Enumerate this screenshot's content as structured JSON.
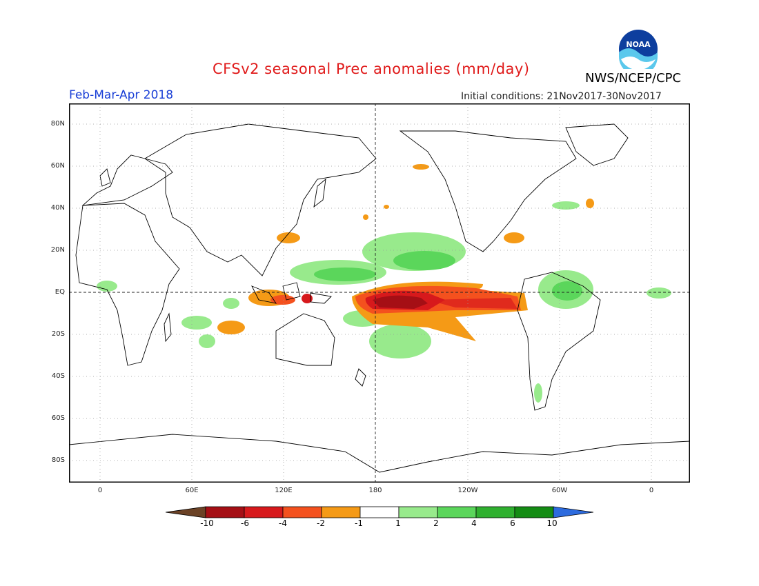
{
  "title": "CFSv2 seasonal Prec anomalies (mm/day)",
  "period": "Feb-Mar-Apr 2018",
  "initial_conditions": "Initial conditions: 21Nov2017-30Nov2017",
  "agency": "NWS/NCEP/CPC",
  "logo_text": "NOAA",
  "lat_labels": [
    "80N",
    "60N",
    "40N",
    "20N",
    "EQ",
    "20S",
    "40S",
    "60S",
    "80S"
  ],
  "lon_labels": [
    "0",
    "60E",
    "120E",
    "180",
    "120W",
    "60W",
    "0"
  ],
  "colorbar": {
    "labels": [
      "-10",
      "-6",
      "-4",
      "-2",
      "-1",
      "1",
      "2",
      "4",
      "6",
      "10"
    ],
    "colors": [
      "#6b4226",
      "#a50f15",
      "#d7191c",
      "#f4511e",
      "#f59a16",
      "#ffffff",
      "#98ea8c",
      "#5bd65b",
      "#2fb02f",
      "#148c14",
      "#2d6bde"
    ]
  },
  "icons": {
    "logo": "noaa-logo-icon"
  }
}
